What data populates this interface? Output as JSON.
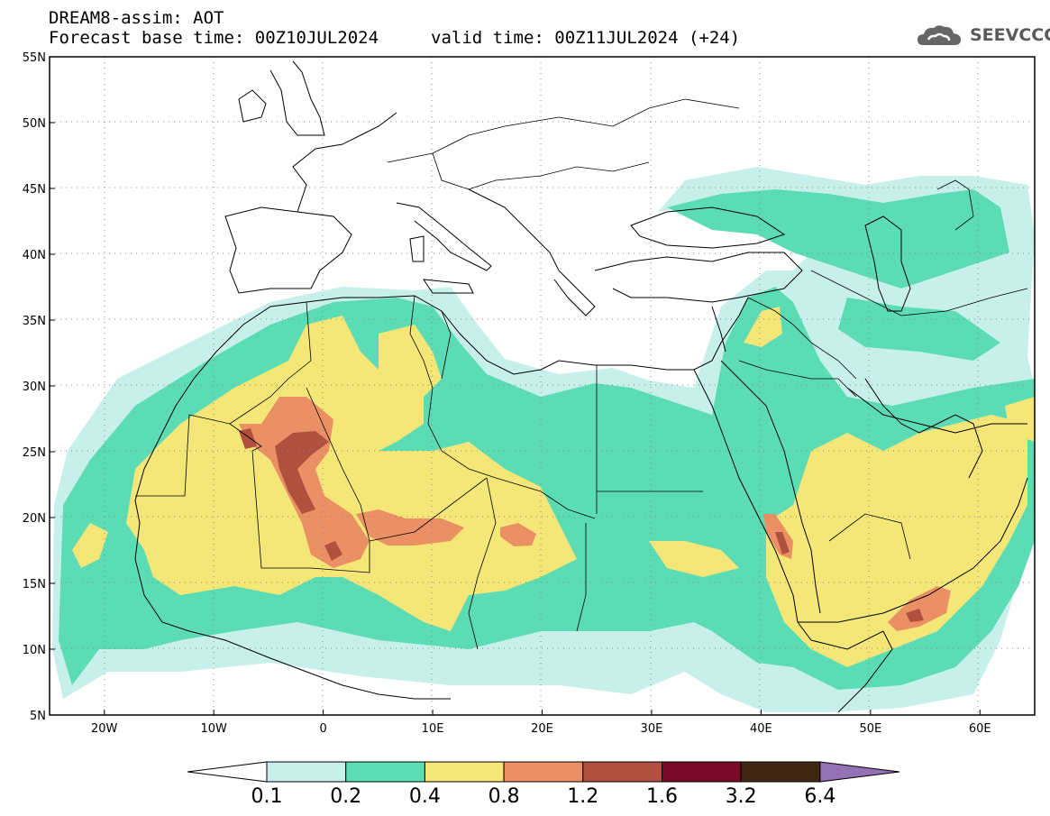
{
  "header": {
    "title_line1": "DREAM8-assim: AOT",
    "base_time": "Forecast base time: 00Z10JUL2024",
    "valid_time": "valid time: 00Z11JUL2024 (+24)"
  },
  "logo": {
    "text": "SEEVCCC",
    "icon": "cloud-icon"
  },
  "map": {
    "lon_range": [
      -25,
      65
    ],
    "lat_range": [
      5,
      55
    ],
    "x_ticks": [
      {
        "lon": -20,
        "label": "20W"
      },
      {
        "lon": -10,
        "label": "10W"
      },
      {
        "lon": 0,
        "label": "0"
      },
      {
        "lon": 10,
        "label": "10E"
      },
      {
        "lon": 20,
        "label": "20E"
      },
      {
        "lon": 30,
        "label": "30E"
      },
      {
        "lon": 40,
        "label": "40E"
      },
      {
        "lon": 50,
        "label": "50E"
      },
      {
        "lon": 60,
        "label": "60E"
      }
    ],
    "y_ticks": [
      {
        "lat": 5,
        "label": "5N"
      },
      {
        "lat": 10,
        "label": "10N"
      },
      {
        "lat": 15,
        "label": "15N"
      },
      {
        "lat": 20,
        "label": "20N"
      },
      {
        "lat": 25,
        "label": "25N"
      },
      {
        "lat": 30,
        "label": "30N"
      },
      {
        "lat": 35,
        "label": "35N"
      },
      {
        "lat": 40,
        "label": "40N"
      },
      {
        "lat": 45,
        "label": "45N"
      },
      {
        "lat": 50,
        "label": "50N"
      },
      {
        "lat": 55,
        "label": "55N"
      }
    ]
  },
  "colorbar": {
    "levels": [
      "0.1",
      "0.2",
      "0.4",
      "0.8",
      "1.2",
      "1.6",
      "3.2",
      "6.4"
    ],
    "colors": [
      "#c8f0ea",
      "#5cdcb4",
      "#f5e678",
      "#ea9064",
      "#b0503e",
      "#7a0a28",
      "#3e2814",
      "#9470b4"
    ],
    "under_color": "#ffffff"
  }
}
